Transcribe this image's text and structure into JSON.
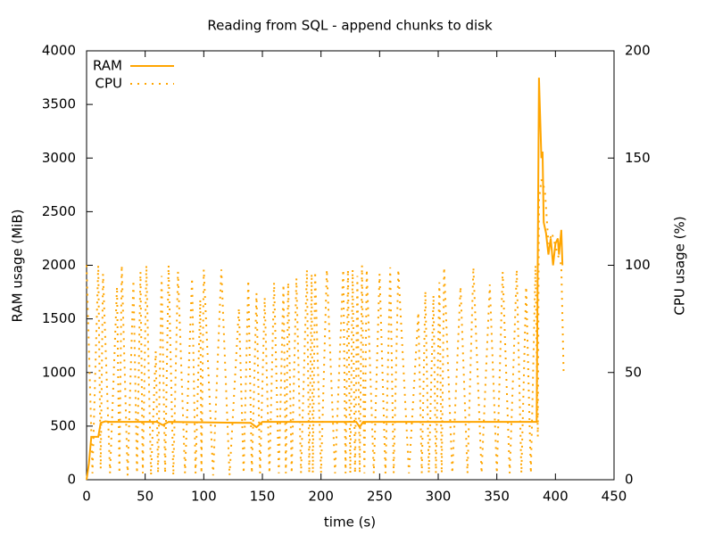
{
  "chart_data": {
    "type": "line",
    "title": "Reading from SQL - append chunks to disk",
    "xlabel": "time (s)",
    "ylabel": "RAM usage (MiB)",
    "y2label": "CPU usage (%)",
    "xlim": [
      0,
      450
    ],
    "xticks": [
      0,
      50,
      100,
      150,
      200,
      250,
      300,
      350,
      400,
      450
    ],
    "ylim": [
      0,
      4000
    ],
    "yticks": [
      0,
      500,
      1000,
      1500,
      2000,
      2500,
      3000,
      3500,
      4000
    ],
    "y2lim": [
      0,
      200
    ],
    "y2ticks": [
      0,
      50,
      100,
      150,
      200
    ],
    "legend": "top-left",
    "series": [
      {
        "name": "RAM",
        "color": "#ffa500",
        "style": "solid",
        "x": [
          0,
          2,
          4,
          10,
          12,
          16,
          20,
          60,
          65,
          70,
          140,
          145,
          150,
          230,
          233,
          236,
          384,
          386,
          388,
          389,
          390,
          392,
          394,
          396,
          398,
          400,
          402,
          403,
          405,
          406
        ],
        "values": [
          0,
          150,
          400,
          400,
          530,
          545,
          540,
          540,
          510,
          540,
          530,
          490,
          540,
          540,
          490,
          540,
          540,
          3750,
          3000,
          3060,
          2400,
          2300,
          2100,
          2250,
          2000,
          2200,
          2250,
          2100,
          2330,
          2000
        ]
      },
      {
        "name": "CPU",
        "color": "#ffa500",
        "style": "dotted",
        "axis": "y2",
        "x": [
          0,
          5,
          10,
          12,
          14,
          20,
          26,
          28,
          30,
          35,
          40,
          43,
          46,
          48,
          51,
          55,
          59,
          61,
          64,
          67,
          70,
          74,
          78,
          84,
          90,
          93,
          97,
          98,
          100,
          108,
          115,
          122,
          130,
          134,
          138,
          141,
          145,
          148,
          152,
          156,
          160,
          164,
          168,
          170,
          172,
          175,
          179,
          183,
          188,
          190,
          192,
          193,
          195,
          200,
          205,
          212,
          219,
          221,
          223,
          225,
          227,
          229,
          231,
          233,
          235,
          237,
          239,
          245,
          250,
          255,
          259,
          262,
          266,
          275,
          283,
          286,
          289,
          292,
          296,
          298,
          301,
          303,
          305,
          312,
          319,
          325,
          330,
          337,
          344,
          350,
          355,
          361,
          367,
          371,
          375,
          379,
          383,
          385,
          386,
          388,
          391,
          394,
          397,
          402,
          405,
          407
        ],
        "values": [
          100,
          3,
          100,
          5,
          96,
          3,
          90,
          3,
          100,
          2,
          93,
          3,
          97,
          3,
          100,
          2,
          60,
          3,
          95,
          3,
          100,
          2,
          97,
          3,
          94,
          3,
          84,
          3,
          98,
          2,
          98,
          2,
          80,
          3,
          93,
          3,
          87,
          3,
          85,
          3,
          92,
          3,
          91,
          3,
          92,
          3,
          94,
          3,
          98,
          3,
          96,
          3,
          97,
          3,
          98,
          3,
          98,
          3,
          98,
          3,
          98,
          3,
          95,
          3,
          100,
          3,
          98,
          3,
          96,
          3,
          99,
          3,
          98,
          3,
          78,
          3,
          88,
          3,
          86,
          3,
          92,
          3,
          99,
          3,
          90,
          3,
          99,
          3,
          91,
          3,
          97,
          3,
          98,
          3,
          90,
          3,
          100,
          20,
          130,
          140,
          135,
          110,
          115,
          105,
          100,
          50
        ]
      }
    ]
  }
}
